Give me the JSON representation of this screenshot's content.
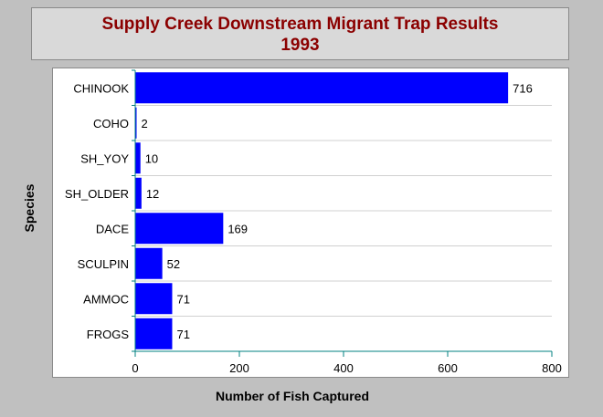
{
  "chart_data": {
    "type": "bar",
    "orientation": "horizontal",
    "title_lines": [
      "Supply Creek Downstream Migrant Trap Results",
      "1993"
    ],
    "xlabel": "Number of Fish Captured",
    "ylabel": "Species",
    "categories": [
      "CHINOOK",
      "COHO",
      "SH_YOY",
      "SH_OLDER",
      "DACE",
      "SCULPIN",
      "AMMOC",
      "FROGS"
    ],
    "values": [
      716,
      2,
      10,
      12,
      169,
      52,
      71,
      71
    ],
    "data_labels": [
      "716",
      "2",
      "10",
      "12",
      "169",
      "52",
      "71",
      "71"
    ],
    "xlim": [
      0,
      800
    ],
    "xticks": [
      0,
      200,
      400,
      600,
      800
    ],
    "xtick_labels": [
      "0",
      "200",
      "400",
      "600",
      "800"
    ],
    "grid": "horizontal-category-separators",
    "colors": {
      "bar": "#0000ff",
      "title": "#8b0000",
      "axis": "#008080",
      "grid": "#d0d0d0",
      "background": "#c0c0c0",
      "plot_background": "#ffffff"
    }
  }
}
